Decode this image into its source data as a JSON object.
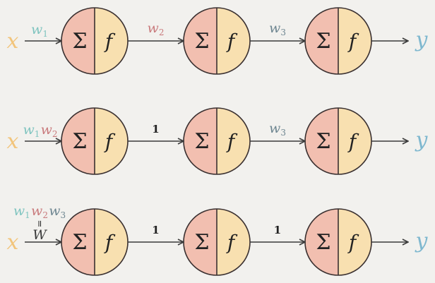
{
  "diagram": {
    "symbols": {
      "sum": "Σ",
      "activation": "f"
    },
    "input_label": "x",
    "output_label": "y",
    "rows": [
      {
        "input_weight": [
          {
            "base": "w",
            "sub": "1",
            "color": "teal"
          }
        ],
        "link_1": [
          {
            "base": "w",
            "sub": "2",
            "color": "red"
          }
        ],
        "link_2": [
          {
            "base": "w",
            "sub": "3",
            "color": "slate"
          }
        ]
      },
      {
        "input_weight": [
          {
            "base": "w",
            "sub": "1",
            "color": "teal"
          },
          {
            "base": "w",
            "sub": "2",
            "color": "red"
          }
        ],
        "link_1": "1",
        "link_2": [
          {
            "base": "w",
            "sub": "3",
            "color": "slate"
          }
        ]
      },
      {
        "input_weight": [
          {
            "base": "w",
            "sub": "1",
            "color": "teal"
          },
          {
            "base": "w",
            "sub": "2",
            "color": "red"
          },
          {
            "base": "w",
            "sub": "3",
            "color": "slate"
          }
        ],
        "equals_sign": "=",
        "combined_weight": "W",
        "link_1": "1",
        "link_2": "1"
      }
    ]
  }
}
